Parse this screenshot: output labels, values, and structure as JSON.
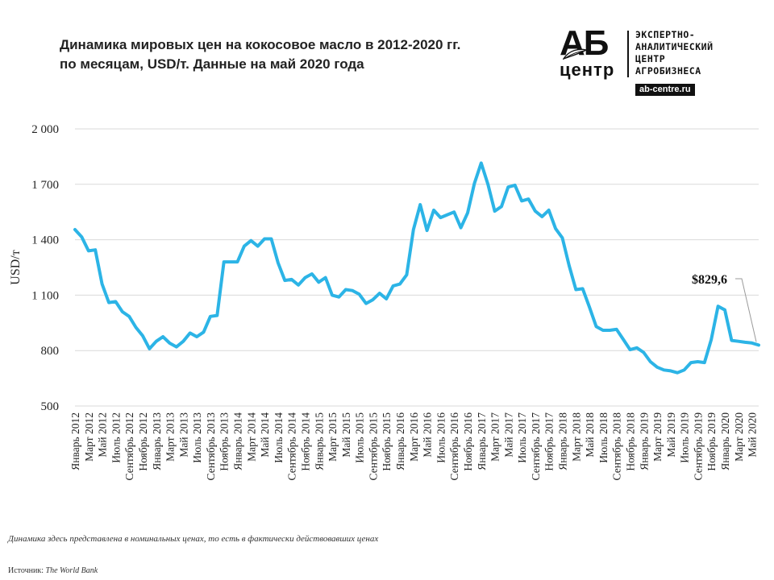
{
  "header": {
    "title_line1": "Динамика мировых цен  на кокосовое масло в 2012-2020 гг.",
    "title_line2": "по месяцам, USD/т. Данные на май 2020 года"
  },
  "logo": {
    "mark_top": "АБ",
    "mark_bottom": "центр",
    "text_lines": [
      "ЭКСПЕРТНО-",
      "АНАЛИТИЧЕСКИЙ",
      "ЦЕНТР",
      "АГРОБИЗНЕСА"
    ],
    "url": "ab-centre.ru"
  },
  "footer": {
    "note": "Динамика здесь представлена в номинальных ценах, то есть в фактически действовавших ценах",
    "source_label": "Источник:",
    "source_value": "The World Bank"
  },
  "colors": {
    "line": "#2CB4E6",
    "grid": "#d9d9d9",
    "text": "#222222"
  },
  "chart_data": {
    "type": "line",
    "title": "Динамика мировых цен  на кокосовое масло в 2012-2020 гг. по месяцам, USD/т. Данные на май 2020 года",
    "ylabel": "USD/т",
    "xlabel": "",
    "ylim": [
      500,
      2000
    ],
    "yticks": [
      500,
      800,
      1100,
      1400,
      1700,
      2000
    ],
    "ytick_labels": [
      "500",
      "800",
      "1 100",
      "1 400",
      "1 700",
      "2 000"
    ],
    "grid": "horizontal",
    "x_tick_labels": [
      "Январь 2012",
      "Март 2012",
      "Май 2012",
      "Июль 2012",
      "Сентябрь 2012",
      "Ноябрь 2012",
      "Январь 2013",
      "Март 2013",
      "Май 2013",
      "Июль 2013",
      "Сентябрь 2013",
      "Ноябрь 2013",
      "Январь 2014",
      "Март 2014",
      "Май 2014",
      "Июль 2014",
      "Сентябрь 2014",
      "Ноябрь 2014",
      "Январь 2015",
      "Март 2015",
      "Май 2015",
      "Июль 2015",
      "Сентябрь 2015",
      "Ноябрь 2015",
      "Январь 2016",
      "Март 2016",
      "Май 2016",
      "Июль 2016",
      "Сентябрь 2016",
      "Ноябрь 2016",
      "Январь 2017",
      "Март 2017",
      "Май 2017",
      "Июль 2017",
      "Сентябрь 2017",
      "Ноябрь 2017",
      "Январь 2018",
      "Март 2018",
      "Май 2018",
      "Июль 2018",
      "Сентябрь 2018",
      "Ноябрь 2018",
      "Январь 2019",
      "Март 2019",
      "Май 2019",
      "Июль 2019",
      "Сентябрь 2019",
      "Ноябрь 2019",
      "Январь 2020",
      "Март 2020",
      "Май 2020"
    ],
    "series": [
      {
        "values": [
          1455,
          1415,
          1340,
          1345,
          1160,
          1060,
          1065,
          1010,
          985,
          925,
          880,
          810,
          850,
          875,
          840,
          820,
          850,
          895,
          875,
          900,
          985,
          990,
          1280,
          1280,
          1280,
          1365,
          1395,
          1365,
          1405,
          1405,
          1275,
          1180,
          1185,
          1155,
          1195,
          1215,
          1170,
          1195,
          1100,
          1090,
          1130,
          1125,
          1105,
          1055,
          1075,
          1110,
          1080,
          1150,
          1160,
          1210,
          1455,
          1590,
          1450,
          1560,
          1520,
          1535,
          1550,
          1465,
          1545,
          1705,
          1815,
          1700,
          1555,
          1580,
          1685,
          1695,
          1610,
          1620,
          1555,
          1525,
          1560,
          1460,
          1410,
          1260,
          1130,
          1135,
          1035,
          930,
          910,
          910,
          915,
          860,
          805,
          815,
          790,
          740,
          710,
          695,
          690,
          680,
          695,
          735,
          740,
          735,
          860,
          1040,
          1020,
          855,
          850,
          845,
          841,
          829.6
        ]
      }
    ],
    "annotations": [
      {
        "text": "$829,6",
        "x": "Май 2020",
        "y": 829.6
      }
    ]
  }
}
